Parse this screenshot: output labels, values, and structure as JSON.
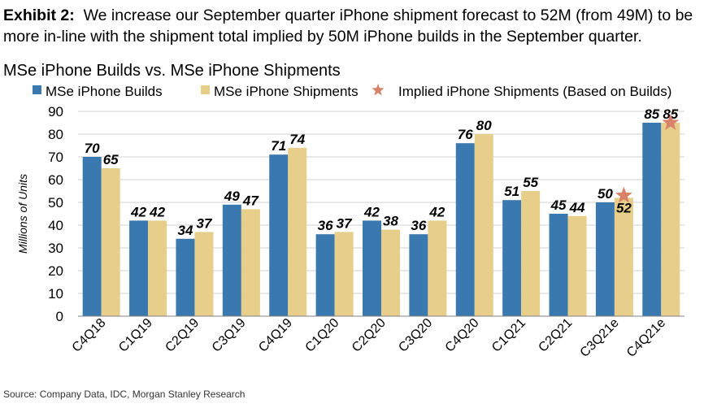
{
  "exhibit": {
    "label": "Exhibit 2:",
    "text": "We increase our September quarter iPhone shipment forecast to 52M (from 49M) to be more in-line with the shipment total implied by 50M iPhone builds in the September quarter."
  },
  "source": "Source: Company Data, IDC, Morgan Stanley Research",
  "colors": {
    "builds": "#3A78B0",
    "shipments": "#E7CE8A",
    "implied": "#D9826A",
    "grid": "#D0D0D0"
  },
  "chart_data": {
    "type": "bar",
    "title": "MSe iPhone Builds vs. MSe iPhone Shipments",
    "ylabel": "Millions of Units",
    "xlabel": "",
    "ylim": [
      0,
      90
    ],
    "yticks": [
      0,
      10,
      20,
      30,
      40,
      50,
      60,
      70,
      80,
      90
    ],
    "grid": true,
    "legend_position": "top",
    "categories": [
      "C4Q18",
      "C1Q19",
      "C2Q19",
      "C3Q19",
      "C4Q19",
      "C1Q20",
      "C2Q20",
      "C3Q20",
      "C4Q20",
      "C1Q21",
      "C2Q21",
      "C3Q21e",
      "C4Q21e"
    ],
    "series": [
      {
        "name": "MSe iPhone Builds",
        "values": [
          70,
          42,
          34,
          49,
          71,
          36,
          42,
          36,
          76,
          51,
          45,
          50,
          85
        ]
      },
      {
        "name": "MSe iPhone Shipments",
        "values": [
          65,
          42,
          37,
          47,
          74,
          37,
          38,
          42,
          80,
          55,
          44,
          52,
          85
        ]
      }
    ],
    "markers": {
      "name": "Implied iPhone Shipments (Based on Builds)",
      "shape": "star",
      "points": [
        {
          "category": "C3Q21e",
          "value": 53
        },
        {
          "category": "C4Q21e",
          "value": 85
        }
      ]
    }
  }
}
